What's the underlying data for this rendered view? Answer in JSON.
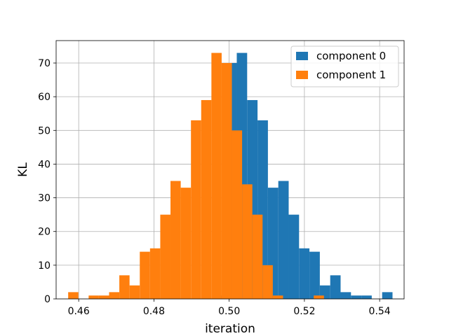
{
  "chart_data": {
    "type": "histogram",
    "xlabel": "iteration",
    "ylabel": "KL",
    "xlim": [
      0.454,
      0.5465
    ],
    "ylim": [
      0,
      76.65
    ],
    "xticks": [
      0.46,
      0.48,
      0.5,
      0.52,
      0.54
    ],
    "xtick_labels": [
      "0.46",
      "0.48",
      "0.50",
      "0.52",
      "0.54"
    ],
    "yticks": [
      0,
      10,
      20,
      30,
      40,
      50,
      60,
      70
    ],
    "ytick_labels": [
      "0",
      "10",
      "20",
      "30",
      "40",
      "50",
      "60",
      "70"
    ],
    "grid": true,
    "legend_position": "top-right",
    "series": [
      {
        "name": "component 0",
        "color": "#1f77b4",
        "bin_start": 0.4965,
        "bin_width": 0.00276,
        "values": [
          1,
          70,
          73,
          59,
          53,
          33,
          35,
          25,
          15,
          14,
          4,
          7,
          2,
          1,
          1,
          0,
          2
        ]
      },
      {
        "name": "component 1",
        "color": "#ff7f0e",
        "bin_start": 0.4572,
        "bin_width": 0.00272,
        "values": [
          2,
          0,
          1,
          1,
          2,
          7,
          4,
          14,
          15,
          25,
          35,
          33,
          53,
          59,
          73,
          70,
          50,
          34,
          25,
          10,
          1,
          0,
          0,
          0,
          1
        ]
      }
    ]
  }
}
